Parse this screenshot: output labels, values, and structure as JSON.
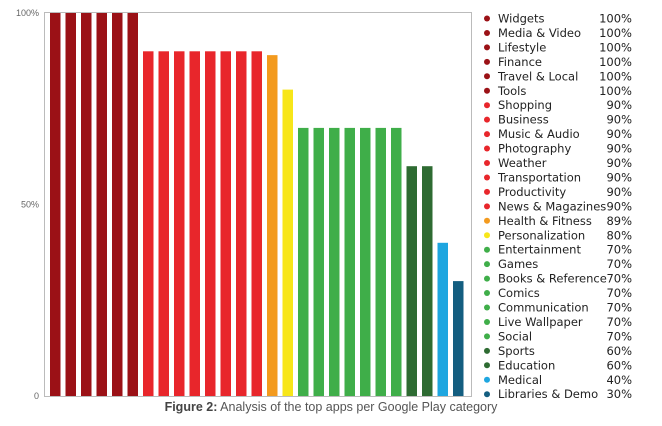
{
  "caption": {
    "label": "Figure 2:",
    "text": "Analysis of the top apps per Google Play category"
  },
  "chart_data": {
    "type": "bar",
    "categories": [
      "Widgets",
      "Media & Video",
      "Lifestyle",
      "Finance",
      "Travel & Local",
      "Tools",
      "Shopping",
      "Business",
      "Music & Audio",
      "Photography",
      "Weather",
      "Transportation",
      "Productivity",
      "News & Magazines",
      "Health & Fitness",
      "Personalization",
      "Entertainment",
      "Games",
      "Books & Reference",
      "Comics",
      "Communication",
      "Live Wallpaper",
      "Social",
      "Sports",
      "Education",
      "Medical",
      "Libraries & Demo"
    ],
    "values": [
      100,
      100,
      100,
      100,
      100,
      100,
      90,
      90,
      90,
      90,
      90,
      90,
      90,
      90,
      89,
      80,
      70,
      70,
      70,
      70,
      70,
      70,
      70,
      60,
      60,
      40,
      30
    ],
    "value_labels": [
      "100%",
      "100%",
      "100%",
      "100%",
      "100%",
      "100%",
      "90%",
      "90%",
      "90%",
      "90%",
      "90%",
      "90%",
      "90%",
      "90%",
      "89%",
      "80%",
      "70%",
      "70%",
      "70%",
      "70%",
      "70%",
      "70%",
      "70%",
      "60%",
      "60%",
      "40%",
      "30%"
    ],
    "colors": [
      "#9b1116",
      "#9b1116",
      "#9b1116",
      "#9b1116",
      "#9b1116",
      "#9b1116",
      "#e8262b",
      "#e8262b",
      "#e8262b",
      "#e8262b",
      "#e8262b",
      "#e8262b",
      "#e8262b",
      "#e8262b",
      "#f39a1e",
      "#f7e619",
      "#3fae49",
      "#3fae49",
      "#3fae49",
      "#3fae49",
      "#3fae49",
      "#3fae49",
      "#3fae49",
      "#2e6b32",
      "#2e6b32",
      "#1ea6e0",
      "#145e80"
    ],
    "yticks": [
      {
        "value": 100,
        "label": "100%"
      },
      {
        "value": 50,
        "label": "50%"
      },
      {
        "value": 0,
        "label": "0"
      }
    ],
    "ylim": [
      0,
      100
    ],
    "legend_position": "right",
    "grid": false
  }
}
